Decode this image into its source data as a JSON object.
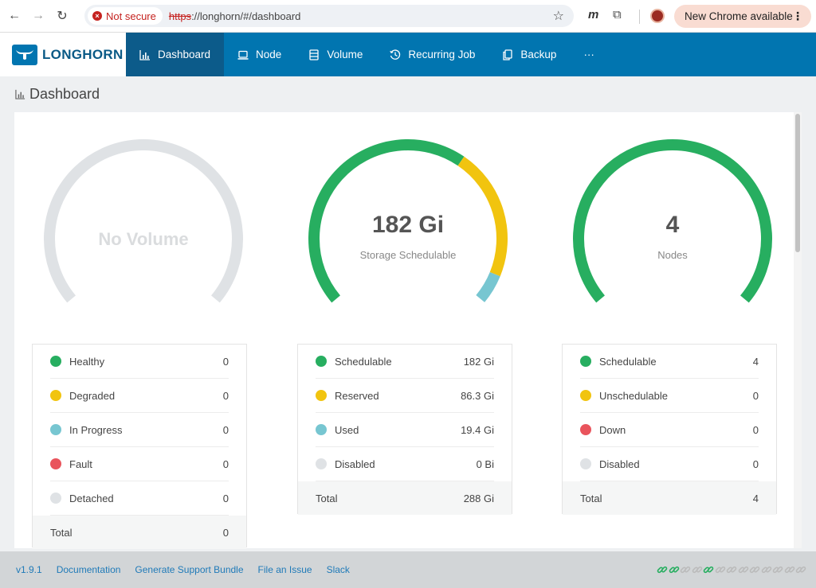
{
  "browser": {
    "security_label": "Not secure",
    "url_scheme": "https",
    "url_rest": "://longhorn/#/dashboard",
    "update_label": "New Chrome available"
  },
  "app": {
    "logo_text": "LONGHORN",
    "nav": [
      {
        "label": "Dashboard",
        "icon": "bar-chart-icon",
        "active": true
      },
      {
        "label": "Node",
        "icon": "laptop-icon"
      },
      {
        "label": "Volume",
        "icon": "database-icon"
      },
      {
        "label": "Recurring Job",
        "icon": "clock-icon"
      },
      {
        "label": "Backup",
        "icon": "copy-icon"
      },
      {
        "label": "···",
        "icon": "more-icon"
      }
    ]
  },
  "page": {
    "title": "Dashboard"
  },
  "panels": {
    "volume": {
      "center_text": "No Volume",
      "gauge_colors": [
        "#dfe2e5"
      ],
      "rows": [
        {
          "label": "Healthy",
          "value": "0",
          "color": "#27ae60"
        },
        {
          "label": "Degraded",
          "value": "0",
          "color": "#f1c40f"
        },
        {
          "label": "In Progress",
          "value": "0",
          "color": "#77c6d1"
        },
        {
          "label": "Fault",
          "value": "0",
          "color": "#e9545c"
        },
        {
          "label": "Detached",
          "value": "0",
          "color": "#dfe2e5"
        }
      ],
      "total_label": "Total",
      "total_value": "0"
    },
    "storage": {
      "center_value": "182 Gi",
      "center_label": "Storage Schedulable",
      "rows": [
        {
          "label": "Schedulable",
          "value": "182 Gi",
          "color": "#27ae60"
        },
        {
          "label": "Reserved",
          "value": "86.3 Gi",
          "color": "#f1c40f"
        },
        {
          "label": "Used",
          "value": "19.4 Gi",
          "color": "#77c6d1"
        },
        {
          "label": "Disabled",
          "value": "0 Bi",
          "color": "#dfe2e5"
        }
      ],
      "total_label": "Total",
      "total_value": "288 Gi"
    },
    "nodes": {
      "center_value": "4",
      "center_label": "Nodes",
      "rows": [
        {
          "label": "Schedulable",
          "value": "4",
          "color": "#27ae60"
        },
        {
          "label": "Unschedulable",
          "value": "0",
          "color": "#f1c40f"
        },
        {
          "label": "Down",
          "value": "0",
          "color": "#e9545c"
        },
        {
          "label": "Disabled",
          "value": "0",
          "color": "#dfe2e5"
        }
      ],
      "total_label": "Total",
      "total_value": "4"
    }
  },
  "footer": {
    "links": [
      "v1.9.1",
      "Documentation",
      "Generate Support Bundle",
      "File an Issue",
      "Slack"
    ],
    "connection_status": [
      "connected",
      "connected",
      "disconnected",
      "disconnected",
      "connected",
      "disconnected",
      "disconnected",
      "disconnected",
      "disconnected",
      "disconnected",
      "disconnected",
      "disconnected",
      "disconnected"
    ]
  }
}
